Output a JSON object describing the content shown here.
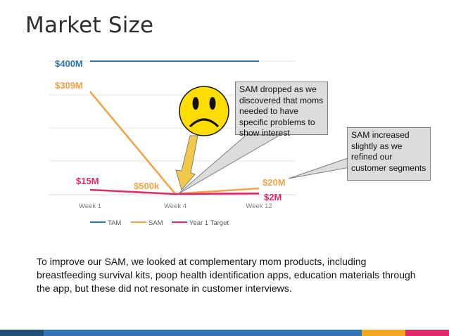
{
  "slide": {
    "title": "Market Size",
    "body_text": "To improve our SAM, we looked at complementary mom products, including breastfeeding survival kits, poop health identification apps, education materials through the app, but these did not resonate in customer interviews."
  },
  "chart_data": {
    "type": "line",
    "categories": [
      "Week 1",
      "Week 4",
      "Week 12"
    ],
    "series": [
      {
        "name": "TAM",
        "color": "#2e75b6",
        "values": [
          400,
          400,
          400
        ],
        "value_labels": [
          "$400M"
        ]
      },
      {
        "name": "SAM",
        "color": "#f4a447",
        "values": [
          309,
          0.5,
          20
        ],
        "value_labels": [
          "$309M",
          "$500k",
          "$20M"
        ]
      },
      {
        "name": "Year 1 Target",
        "color": "#e0296b",
        "values": [
          15,
          0,
          2
        ],
        "value_labels": [
          "$15M",
          "$2M"
        ]
      }
    ],
    "ylabel": "",
    "xlabel": "",
    "ylim": [
      0,
      400
    ]
  },
  "callouts": [
    {
      "text": "SAM dropped as we discovered that moms needed to have specific problems to show interest"
    },
    {
      "text": "SAM increased slightly as we refined our customer segments"
    }
  ],
  "emoji": {
    "name": "sad-face-icon",
    "face_color": "#ffdd00"
  },
  "arrow_color": "#f2c84b",
  "footer_colors": [
    "#1f4e79",
    "#2e75b6",
    "#f5a623",
    "#e0296b"
  ]
}
